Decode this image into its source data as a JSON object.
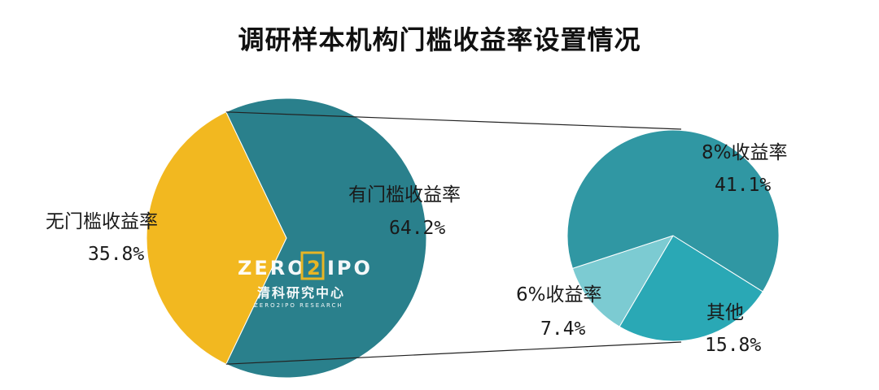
{
  "chart_data": {
    "type": "pie",
    "title": "调研样本机构门槛收益率设置情况",
    "colors": {
      "no_threshold": "#f2b820",
      "threshold": "#2a808c",
      "eight_pct": "#3097a3",
      "six_pct": "#7ccbd2",
      "other": "#2aa8b5"
    },
    "main_pie": [
      {
        "label": "无门槛收益率",
        "value_text": "35.8%",
        "value": 35.8,
        "color_key": "no_threshold"
      },
      {
        "label": "有门槛收益率",
        "value_text": "64.2%",
        "value": 64.2,
        "color_key": "threshold"
      }
    ],
    "sub_pie": [
      {
        "label": "8%收益率",
        "value_text": "41.1%",
        "value": 41.1,
        "color_key": "eight_pct"
      },
      {
        "label": "6%收益率",
        "value_text": "7.4%",
        "value": 7.4,
        "color_key": "six_pct"
      },
      {
        "label": "其他",
        "value_text": "15.8%",
        "value": 15.8,
        "color_key": "other"
      }
    ]
  },
  "watermark": {
    "brand_left": "ZERO",
    "brand_mid": "2",
    "brand_right": "IPO",
    "chinese": "清科研究中心",
    "english": "ZERO2IPO RESEARCH"
  }
}
